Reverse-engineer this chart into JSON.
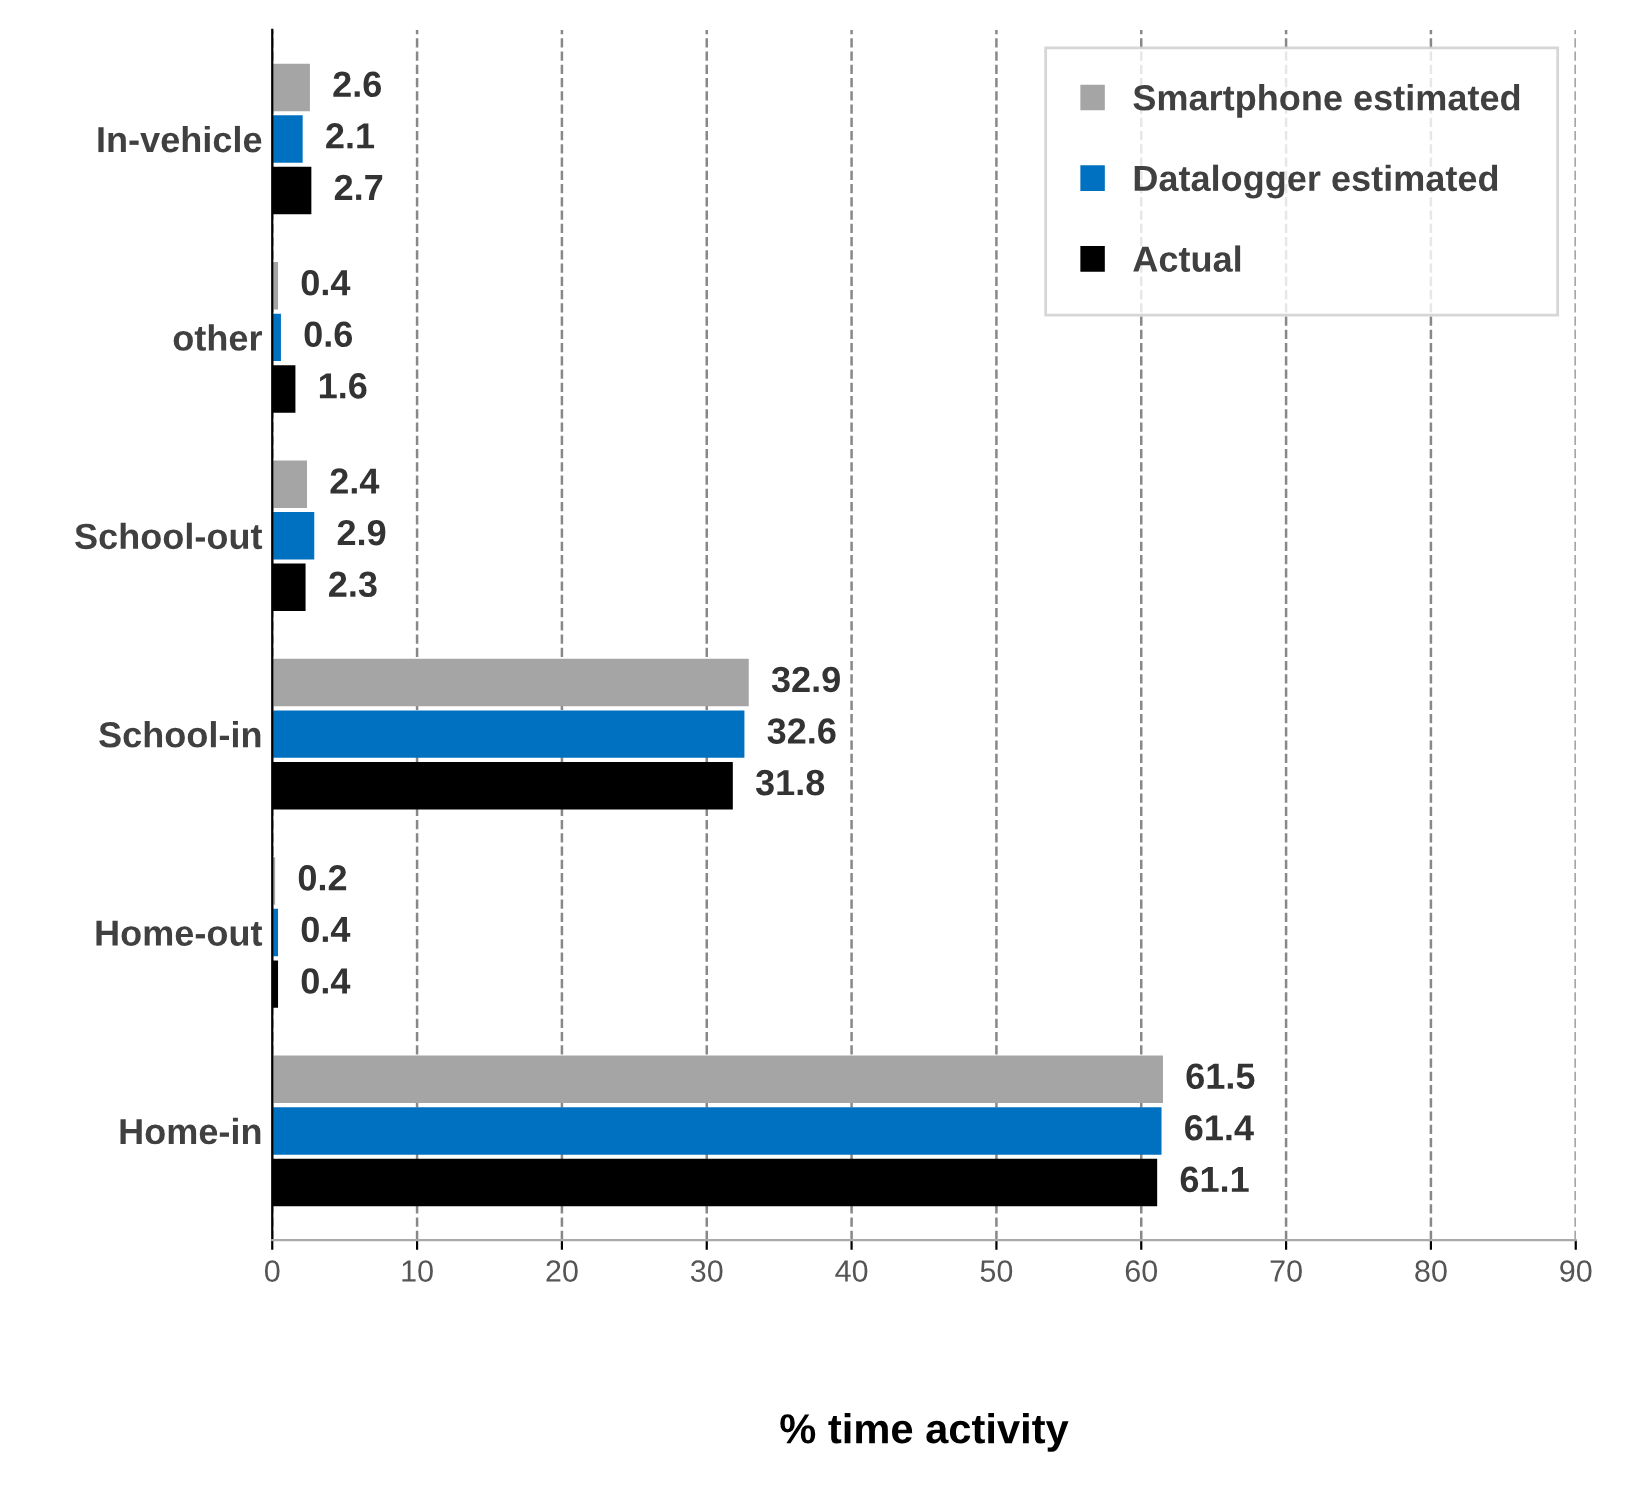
{
  "chart_data": {
    "type": "bar",
    "orientation": "horizontal",
    "xlabel": "% time activity",
    "categories": [
      "In-vehicle",
      "other",
      "School-out",
      "School-in",
      "Home-out",
      "Home-in"
    ],
    "series": [
      {
        "name": "Smartphone estimated",
        "color": "#a5a5a5",
        "values": [
          2.6,
          0.4,
          2.4,
          32.9,
          0.2,
          61.5
        ]
      },
      {
        "name": "Datalogger estimated",
        "color": "#0070c0",
        "values": [
          2.1,
          0.6,
          2.9,
          32.6,
          0.4,
          61.4
        ]
      },
      {
        "name": "Actual",
        "color": "#000000",
        "values": [
          2.7,
          1.6,
          2.3,
          31.8,
          0.4,
          61.1
        ]
      }
    ],
    "xlim": [
      0,
      90
    ],
    "xticks": [
      0,
      10,
      20,
      30,
      40,
      50,
      60,
      70,
      80,
      90
    ],
    "grid": "x",
    "legend": "top right",
    "data_labels": true
  }
}
